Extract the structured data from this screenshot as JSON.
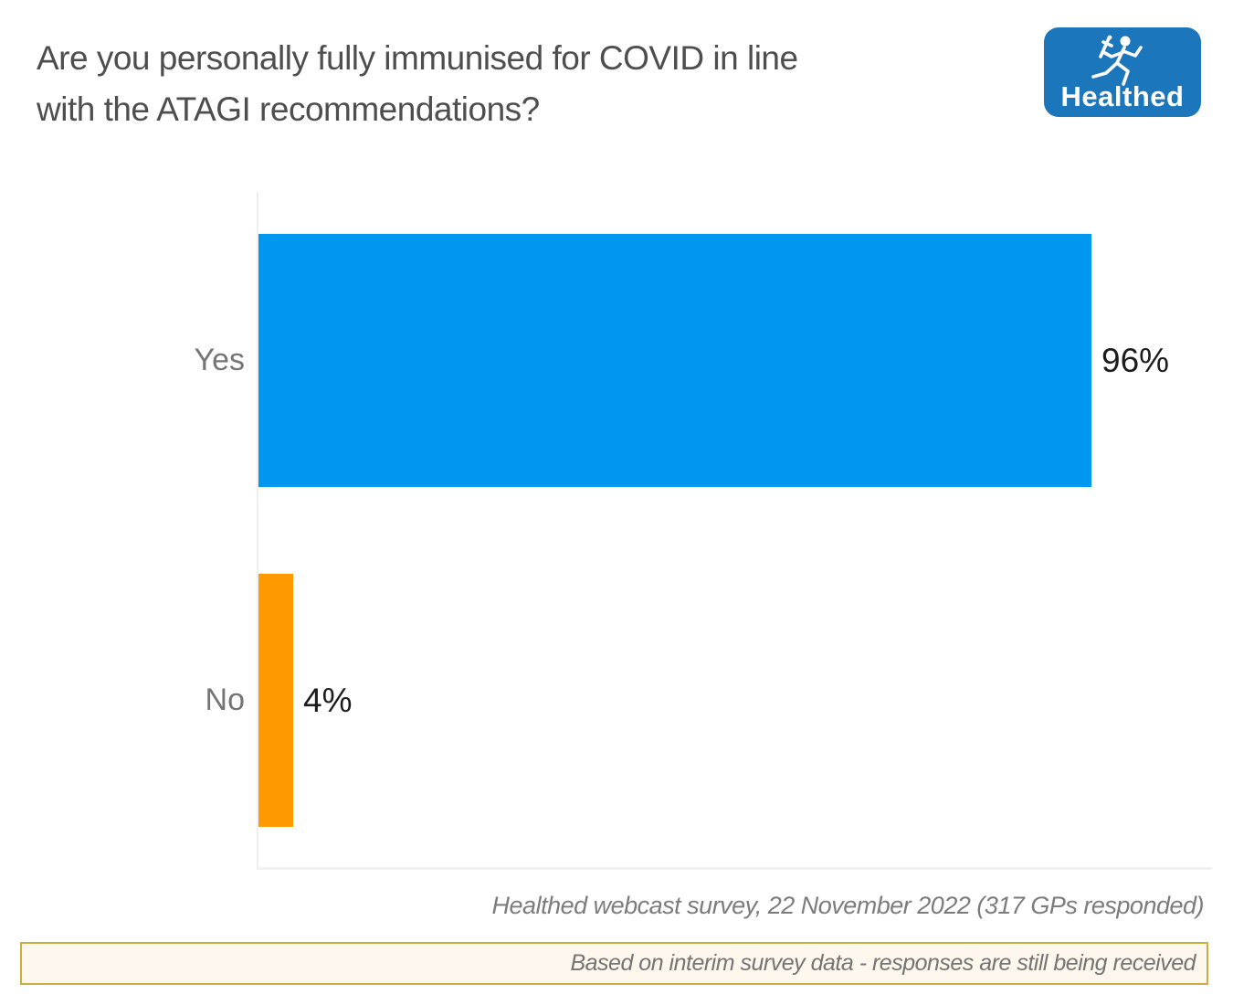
{
  "header": {
    "title_lines": [
      "Are you personally fully immunised for COVID in line",
      "with the ATAGI recommendations?"
    ]
  },
  "logo": {
    "text": "Healthed",
    "icon": "hermes-runner-icon",
    "background_color": "#1B76BC",
    "text_color": "#FFFFFF"
  },
  "chart_data": {
    "type": "bar",
    "orientation": "horizontal",
    "title": "Are you personally fully immunised for COVID in line with the ATAGI recommendations?",
    "categories": [
      "Yes",
      "No"
    ],
    "values": [
      96,
      4
    ],
    "value_labels": [
      "96%",
      "4%"
    ],
    "series_colors": [
      "#0097F0",
      "#FF9900"
    ],
    "xlabel": "",
    "ylabel": "",
    "xlim": [
      0,
      100
    ],
    "grid": false,
    "legend": false,
    "axis_color": "#EFEFEF",
    "category_label_color": "#757575",
    "value_label_color": "#1C1C1C"
  },
  "footer": {
    "source_caption": "Healthed webcast survey, 22 November 2022 (317 GPs responded)",
    "disclaimer": "Based on interim survey data - responses are still being received",
    "disclaimer_border_color": "#CBAD42",
    "disclaimer_background_color": "#FDF7ED"
  }
}
